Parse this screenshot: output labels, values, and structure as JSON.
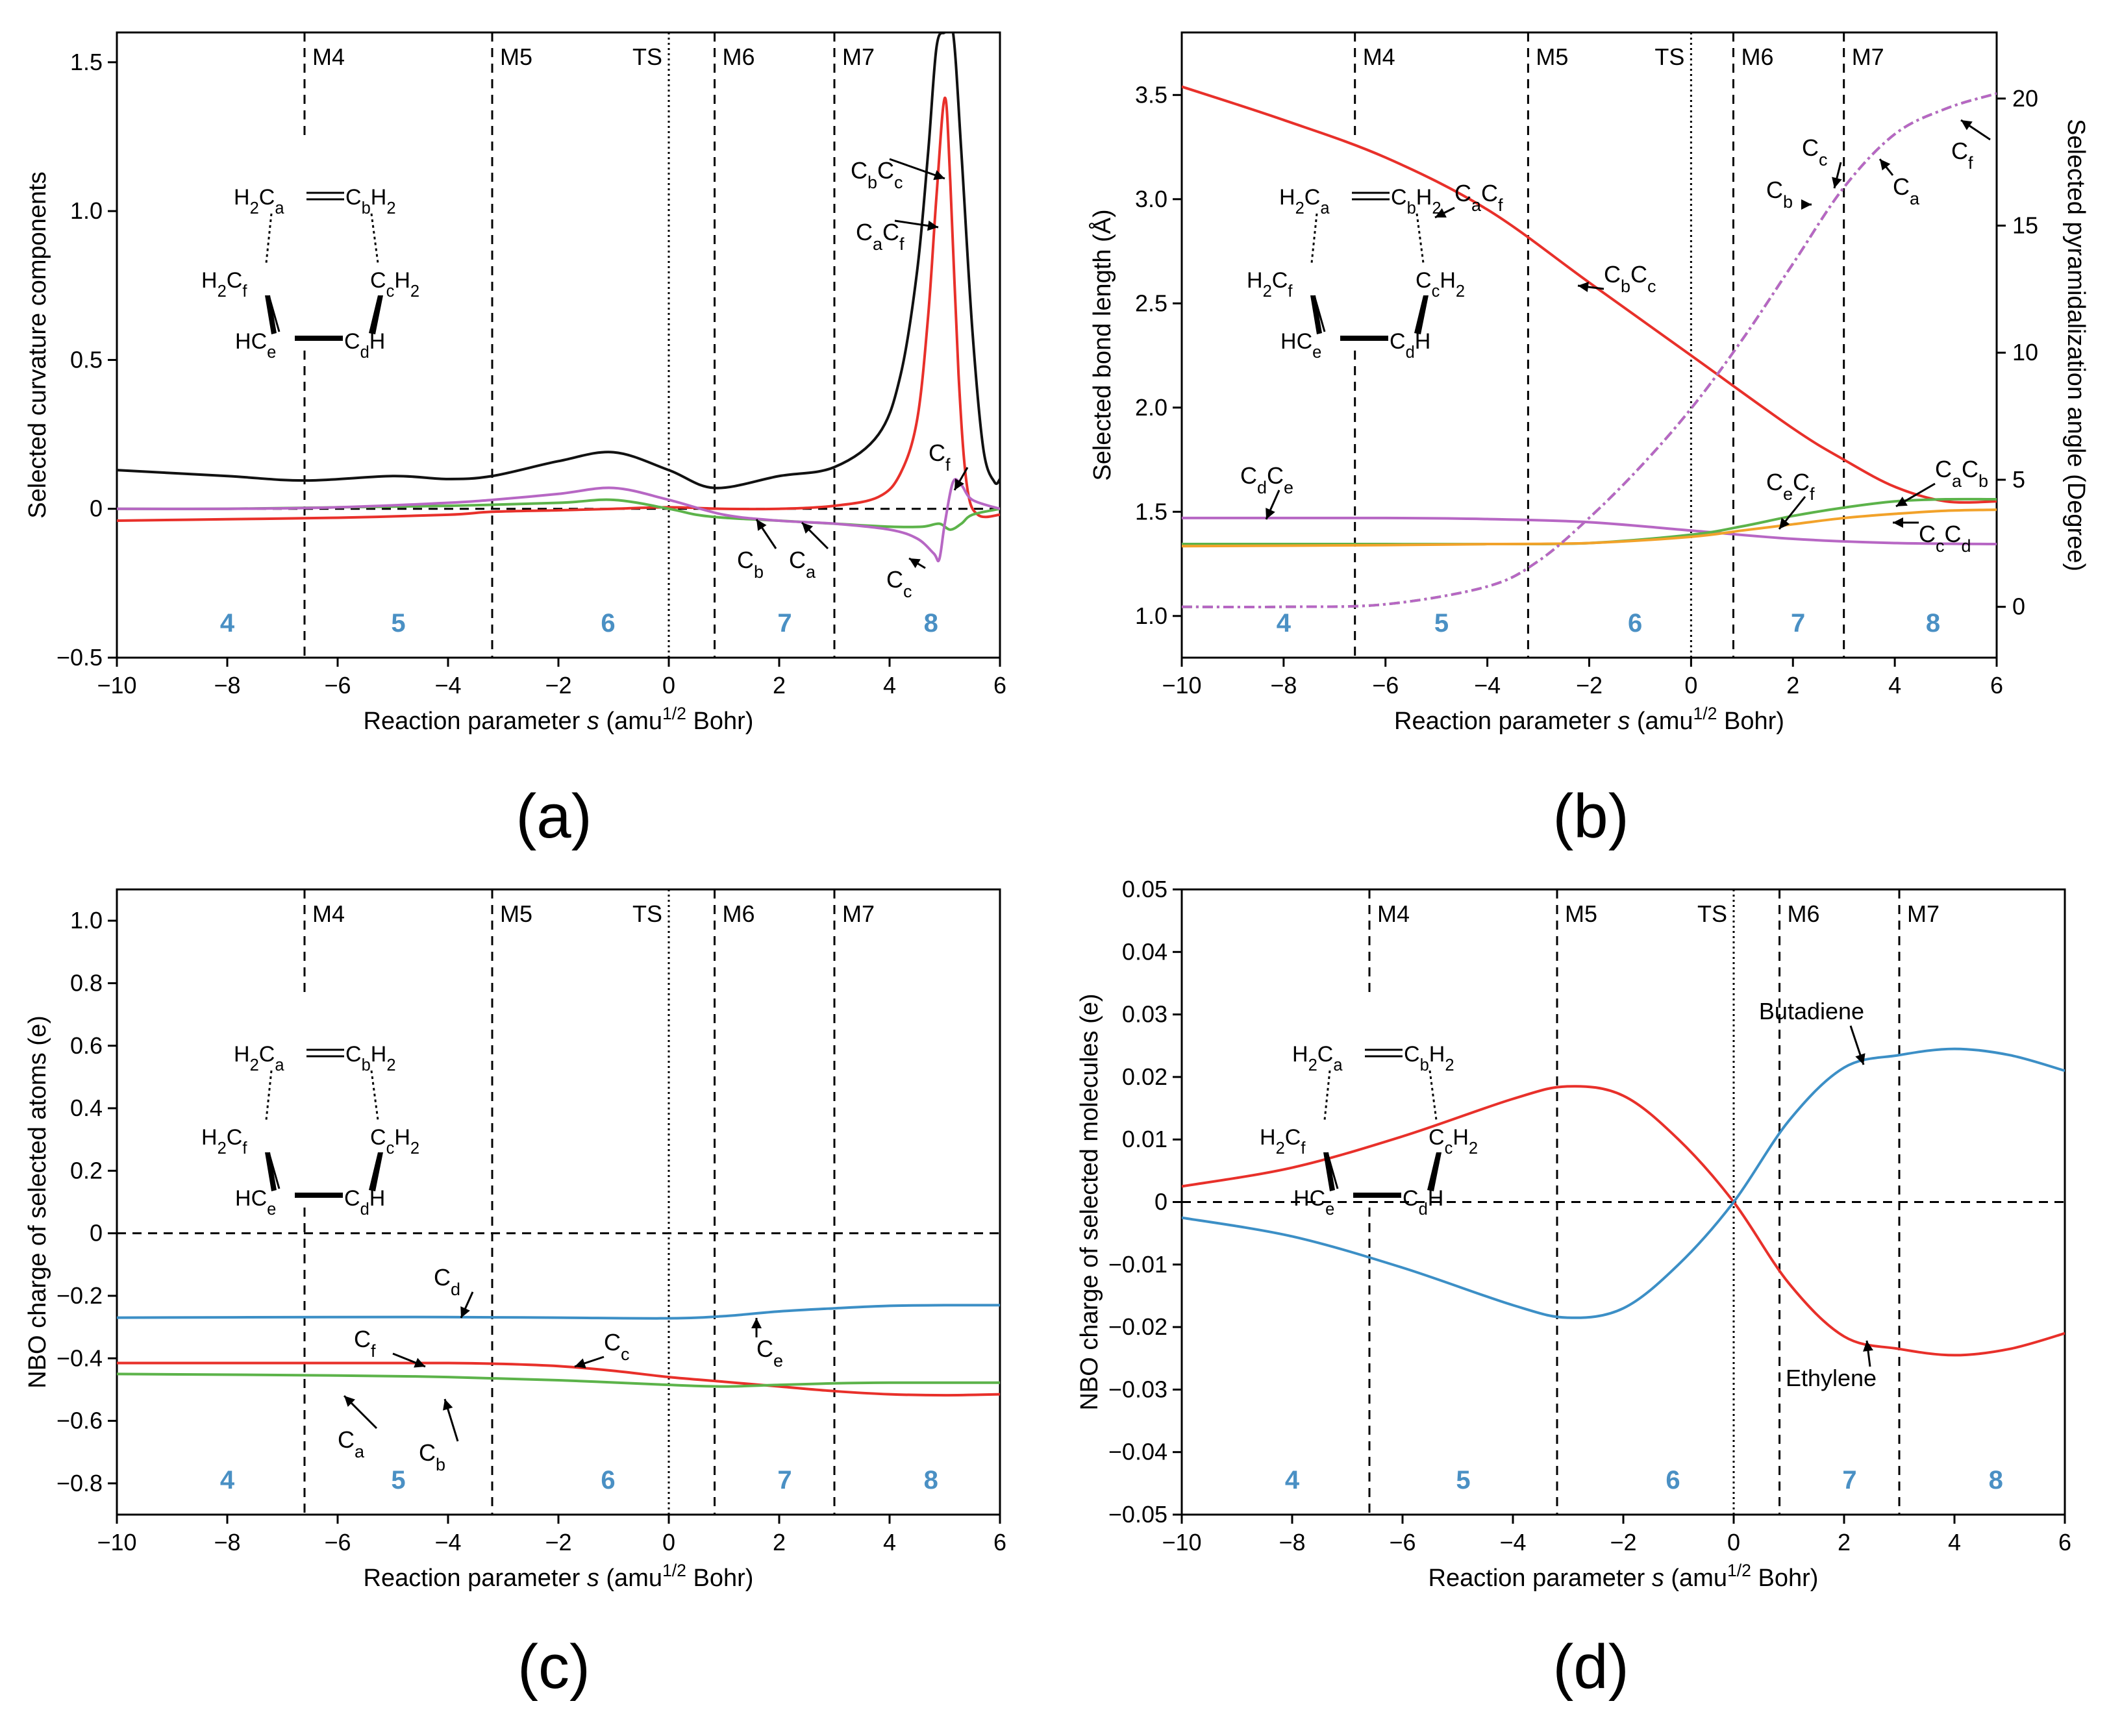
{
  "colors": {
    "black": "#111111",
    "red": "#e8302a",
    "green": "#5cb34a",
    "purple": "#b767c4",
    "blue": "#3c8fc6",
    "orange": "#f2a22a",
    "region": "#4a90c4"
  },
  "common": {
    "xlabel": "Reaction parameter s (amu^1/2 Bohr)",
    "stage_labels": [
      "M4",
      "M5",
      "TS",
      "M6",
      "M7"
    ],
    "stage_positions": [
      -6.6,
      -3.2,
      0,
      0.83,
      3.0
    ],
    "regions": [
      {
        "label": "4",
        "x": -8.0
      },
      {
        "label": "5",
        "x": -4.9
      },
      {
        "label": "6",
        "x": -1.1
      },
      {
        "label": "7",
        "x": 2.1
      },
      {
        "label": "8",
        "x": 4.75
      }
    ],
    "xlim": [
      -10,
      6
    ],
    "xticks": [
      -10,
      -8,
      -6,
      -4,
      -2,
      0,
      2,
      4,
      6
    ],
    "molecule": {
      "top_left": "H2Ca",
      "top_right": "CbH2",
      "mid_left": "H2Cf",
      "mid_right": "CcH2",
      "bot_left": "HCe",
      "bot_right": "CdH"
    }
  },
  "chart_data": [
    {
      "id": "a",
      "panel_label": "(a)",
      "type": "line",
      "ylabel": "Selected curvature components",
      "ylim": [
        -0.5,
        1.6
      ],
      "yticks": [
        -0.5,
        0,
        0.5,
        1.0,
        1.5
      ],
      "ytick_labels": [
        "−0.5",
        "0",
        "0.5",
        "1.0",
        "1.5"
      ],
      "zero_line": true,
      "series": [
        {
          "name": "CbCc",
          "color": "black",
          "x": [
            -10,
            -8,
            -6.6,
            -5,
            -4,
            -3.2,
            -2,
            -1,
            0,
            0.83,
            2,
            3,
            3.8,
            4.2,
            4.5,
            4.7,
            4.85,
            5.0,
            5.15,
            5.3,
            5.5,
            5.7,
            5.9,
            6
          ],
          "y": [
            0.13,
            0.11,
            0.095,
            0.11,
            0.1,
            0.11,
            0.16,
            0.19,
            0.13,
            0.07,
            0.11,
            0.14,
            0.25,
            0.45,
            0.8,
            1.2,
            1.55,
            1.6,
            1.6,
            1.2,
            0.6,
            0.2,
            0.09,
            0.1
          ]
        },
        {
          "name": "CaCf",
          "color": "red",
          "x": [
            -10,
            -8,
            -6,
            -4,
            -3.2,
            -2,
            -1,
            0,
            1,
            2,
            3,
            3.8,
            4.2,
            4.5,
            4.7,
            4.85,
            5.0,
            5.1,
            5.25,
            5.4,
            5.6,
            6
          ],
          "y": [
            -0.04,
            -0.035,
            -0.03,
            -0.02,
            -0.01,
            -0.005,
            0.0,
            0.005,
            0.0,
            0.0,
            0.01,
            0.04,
            0.12,
            0.3,
            0.65,
            1.05,
            1.38,
            1.1,
            0.45,
            0.08,
            -0.02,
            -0.02
          ]
        },
        {
          "name": "Ca/Cb",
          "color": "green",
          "x": [
            -10,
            -8,
            -6,
            -4,
            -2,
            -1,
            0,
            0.5,
            1,
            2,
            3,
            4,
            4.6,
            4.9,
            5.1,
            5.3,
            5.5,
            6
          ],
          "y": [
            0.0,
            0.0,
            0.005,
            0.01,
            0.02,
            0.03,
            0.0,
            -0.02,
            -0.03,
            -0.04,
            -0.05,
            -0.06,
            -0.06,
            -0.05,
            -0.07,
            -0.05,
            -0.02,
            0.0
          ]
        },
        {
          "name": "Cc/Cf",
          "color": "purple",
          "x": [
            -10,
            -8,
            -6,
            -4,
            -3.2,
            -2,
            -1,
            0,
            1,
            2,
            3,
            4,
            4.5,
            4.8,
            4.9,
            5.0,
            5.15,
            5.3,
            5.5,
            6
          ],
          "y": [
            0.0,
            0.0,
            0.005,
            0.02,
            0.03,
            0.05,
            0.07,
            0.03,
            -0.02,
            -0.04,
            -0.05,
            -0.07,
            -0.1,
            -0.15,
            -0.17,
            -0.05,
            0.09,
            0.08,
            0.03,
            0.0
          ]
        }
      ],
      "annotations": [
        "CbCc",
        "CaCf",
        "Cf",
        "Cb",
        "Ca",
        "Cc"
      ]
    },
    {
      "id": "b",
      "panel_label": "(b)",
      "type": "line",
      "ylabel": "Selected bond length (Å)",
      "ylabel_right": "Selected pyramidalization angle (Degree)",
      "ylim": [
        0.8,
        3.8
      ],
      "yticks": [
        1.0,
        1.5,
        2.0,
        2.5,
        3.0,
        3.5
      ],
      "ytick_labels": [
        "1.0",
        "1.5",
        "2.0",
        "2.5",
        "3.0",
        "3.5"
      ],
      "y2lim": [
        -2,
        22.6
      ],
      "y2ticks": [
        0,
        5,
        10,
        15,
        20
      ],
      "y2tick_labels": [
        "0",
        "5",
        "10",
        "15",
        "20"
      ],
      "series": [
        {
          "name": "CaCf/CbCc",
          "color": "red",
          "x": [
            -10,
            -8,
            -6,
            -4,
            -2,
            0,
            2,
            3,
            4,
            5,
            6
          ],
          "y": [
            3.54,
            3.38,
            3.2,
            2.95,
            2.6,
            2.25,
            1.9,
            1.75,
            1.62,
            1.55,
            1.55
          ]
        },
        {
          "name": "CdCe",
          "color": "purple",
          "x": [
            -10,
            -6,
            -4,
            -2,
            0,
            2,
            4,
            6
          ],
          "y": [
            1.47,
            1.47,
            1.465,
            1.45,
            1.41,
            1.37,
            1.35,
            1.345
          ]
        },
        {
          "name": "CeCf/CaCb",
          "color": "green",
          "x": [
            -10,
            -6,
            -4,
            -2,
            0,
            1,
            2,
            3,
            4,
            5,
            6
          ],
          "y": [
            1.345,
            1.345,
            1.345,
            1.35,
            1.39,
            1.43,
            1.48,
            1.52,
            1.55,
            1.56,
            1.56
          ]
        },
        {
          "name": "CcCd",
          "color": "orange",
          "x": [
            -10,
            -6,
            -4,
            -2,
            0,
            1,
            2,
            3,
            4,
            5,
            6
          ],
          "y": [
            1.335,
            1.34,
            1.345,
            1.35,
            1.38,
            1.41,
            1.44,
            1.47,
            1.49,
            1.505,
            1.51
          ]
        },
        {
          "name": "pyramidalization Ca-Cf",
          "color": "purple",
          "dashed": true,
          "axis": "right",
          "x": [
            -10,
            -8,
            -6,
            -4,
            -3,
            -2,
            -1,
            0,
            1,
            2,
            3,
            4,
            5,
            6
          ],
          "y": [
            0,
            0,
            0.1,
            0.8,
            1.8,
            3.5,
            5.5,
            7.8,
            10.5,
            13.5,
            16.5,
            18.6,
            19.6,
            20.2
          ]
        }
      ],
      "annotations": [
        "CaCf",
        "CbCc",
        "CdCe",
        "Cb",
        "Cc",
        "Ca",
        "Cf",
        "CeCf",
        "CaCb",
        "CcCd"
      ]
    },
    {
      "id": "c",
      "panel_label": "(c)",
      "type": "line",
      "ylabel": "NBO charge of selected atoms (e)",
      "ylim": [
        -0.9,
        1.1
      ],
      "yticks": [
        -0.8,
        -0.6,
        -0.4,
        -0.2,
        0,
        0.2,
        0.4,
        0.6,
        0.8,
        1.0
      ],
      "ytick_labels": [
        "−0.8",
        "−0.6",
        "−0.4",
        "−0.2",
        "0",
        "0.2",
        "0.4",
        "0.6",
        "0.8",
        "1.0"
      ],
      "zero_line": true,
      "series": [
        {
          "name": "Cd/Ce",
          "color": "blue",
          "x": [
            -10,
            -6,
            -4,
            -2,
            0,
            1,
            2,
            3,
            4,
            5,
            6
          ],
          "y": [
            -0.27,
            -0.268,
            -0.268,
            -0.27,
            -0.272,
            -0.265,
            -0.25,
            -0.24,
            -0.232,
            -0.23,
            -0.23
          ]
        },
        {
          "name": "Cf/Cc",
          "color": "red",
          "x": [
            -10,
            -6,
            -4,
            -3,
            -2,
            -1,
            0,
            1,
            2,
            3,
            4,
            5,
            6
          ],
          "y": [
            -0.415,
            -0.415,
            -0.415,
            -0.418,
            -0.425,
            -0.44,
            -0.46,
            -0.475,
            -0.49,
            -0.505,
            -0.515,
            -0.518,
            -0.515
          ]
        },
        {
          "name": "Ca/Cb",
          "color": "green",
          "x": [
            -10,
            -6,
            -4,
            -2,
            0,
            1,
            2,
            3,
            4,
            6
          ],
          "y": [
            -0.45,
            -0.455,
            -0.46,
            -0.47,
            -0.485,
            -0.49,
            -0.485,
            -0.48,
            -0.478,
            -0.478
          ]
        }
      ],
      "annotations": [
        "Cd",
        "Ce",
        "Cf",
        "Cc",
        "Ca",
        "Cb"
      ]
    },
    {
      "id": "d",
      "panel_label": "(d)",
      "type": "line",
      "ylabel": "NBO charge of selected molecules (e)",
      "ylim": [
        -0.05,
        0.05
      ],
      "yticks": [
        -0.05,
        -0.04,
        -0.03,
        -0.02,
        -0.01,
        0,
        0.01,
        0.02,
        0.03,
        0.04,
        0.05
      ],
      "ytick_labels": [
        "−0.05",
        "−0.04",
        "−0.03",
        "−0.02",
        "−0.01",
        "0",
        "0.01",
        "0.02",
        "0.03",
        "0.04",
        "0.05"
      ],
      "zero_line": true,
      "series": [
        {
          "name": "Ethylene",
          "color": "red",
          "x": [
            -10,
            -8,
            -6,
            -4,
            -3,
            -2,
            -1,
            0,
            1,
            2,
            3,
            4,
            5,
            6
          ],
          "y": [
            0.0025,
            0.0055,
            0.0105,
            0.0165,
            0.0185,
            0.017,
            0.01,
            0.0,
            -0.013,
            -0.0215,
            -0.0235,
            -0.0245,
            -0.0235,
            -0.021
          ]
        },
        {
          "name": "Butadiene",
          "color": "blue",
          "x": [
            -10,
            -8,
            -6,
            -4,
            -3,
            -2,
            -1,
            0,
            1,
            2,
            3,
            4,
            5,
            6
          ],
          "y": [
            -0.0025,
            -0.0055,
            -0.0105,
            -0.0165,
            -0.0185,
            -0.017,
            -0.01,
            0.0,
            0.013,
            0.0215,
            0.0235,
            0.0245,
            0.0235,
            0.021
          ]
        }
      ],
      "annotations": [
        "Butadiene",
        "Ethylene"
      ]
    }
  ]
}
